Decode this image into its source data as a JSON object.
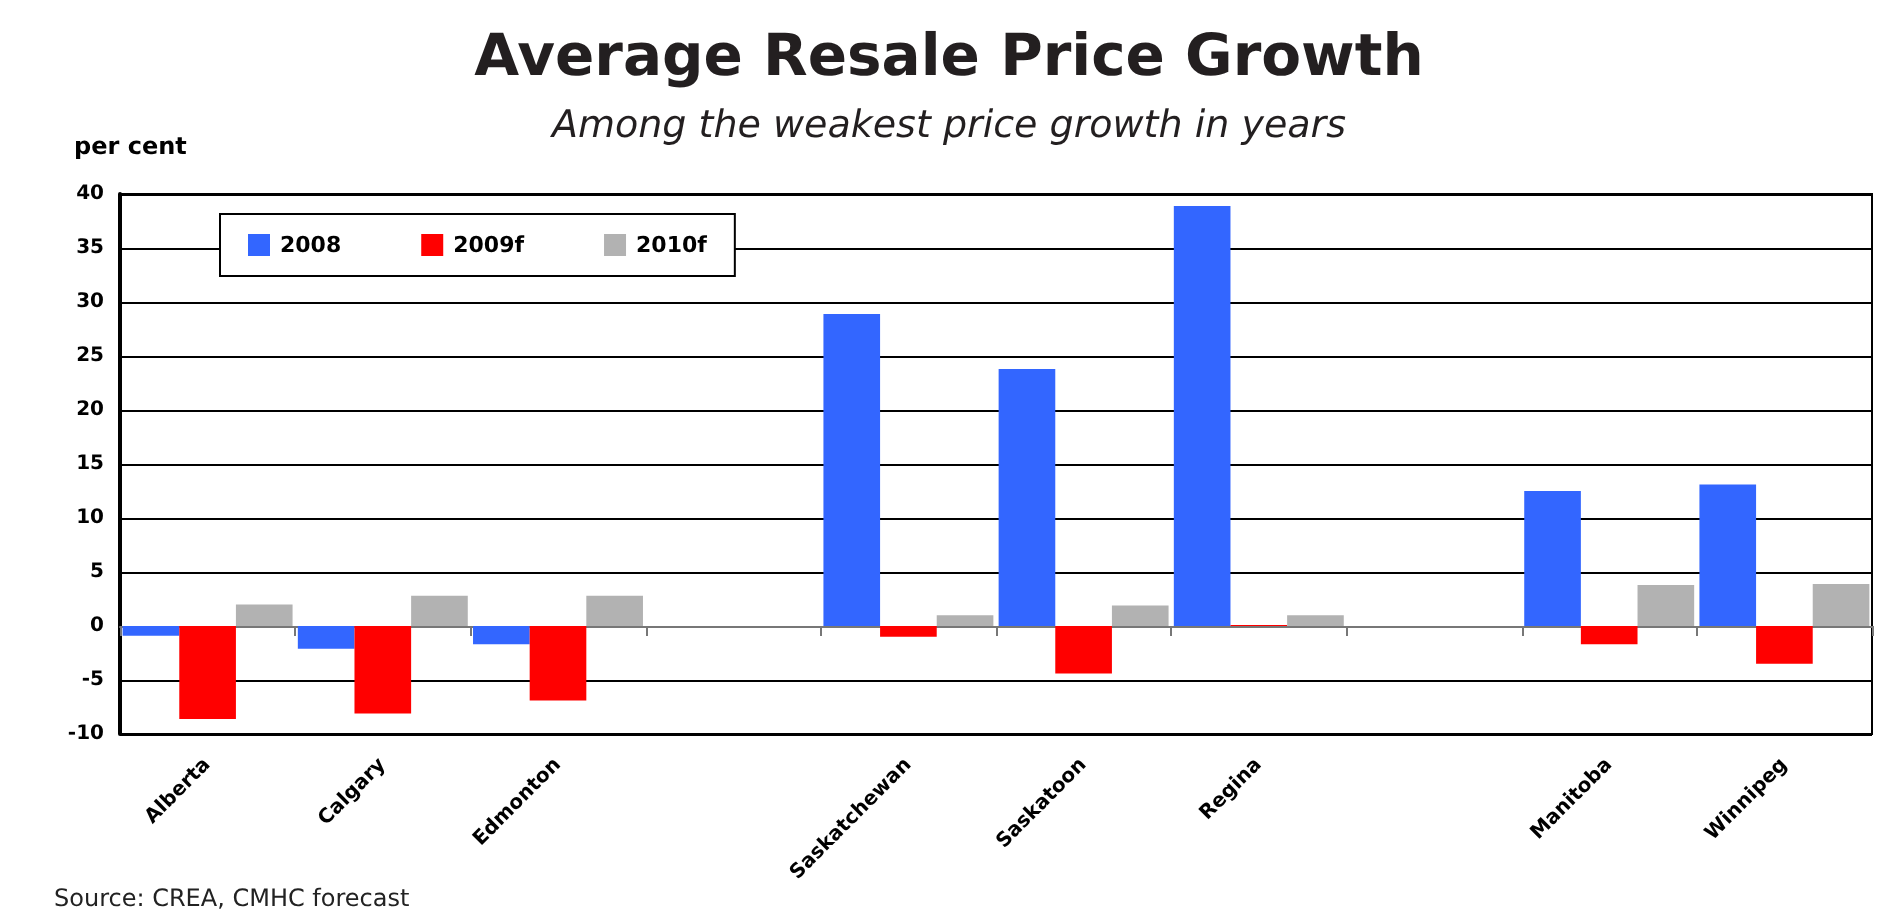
{
  "chart_data": {
    "type": "bar",
    "title": "Average Resale Price Growth",
    "subtitle": "Among the weakest price growth in years",
    "ylabel": "per cent",
    "categories": [
      "Alberta",
      "Calgary",
      "Edmonton",
      null,
      "Saskatchewan",
      "Saskatoon",
      "Regina",
      null,
      "Manitoba",
      "Winnipeg"
    ],
    "series": [
      {
        "name": "2008",
        "color": "#3366ff",
        "values": [
          -0.9,
          -2.1,
          -1.7,
          null,
          28.9,
          23.8,
          38.9,
          null,
          12.5,
          13.1
        ]
      },
      {
        "name": "2009f",
        "color": "#ff0000",
        "values": [
          -8.6,
          -8.1,
          -6.9,
          null,
          -1.0,
          -4.4,
          0.1,
          null,
          -1.7,
          -3.5
        ]
      },
      {
        "name": "2010f",
        "color": "#b2b2b2",
        "values": [
          2.0,
          2.8,
          2.8,
          null,
          1.0,
          1.9,
          1.0,
          null,
          3.8,
          3.9
        ]
      }
    ],
    "ylim": [
      -10,
      40
    ],
    "yticks": [
      -10,
      -5,
      0,
      5,
      10,
      15,
      20,
      25,
      30,
      35,
      40
    ],
    "grid": "y",
    "legend": "top left",
    "annotations": [
      "Source: CREA, CMHC forecast"
    ]
  }
}
